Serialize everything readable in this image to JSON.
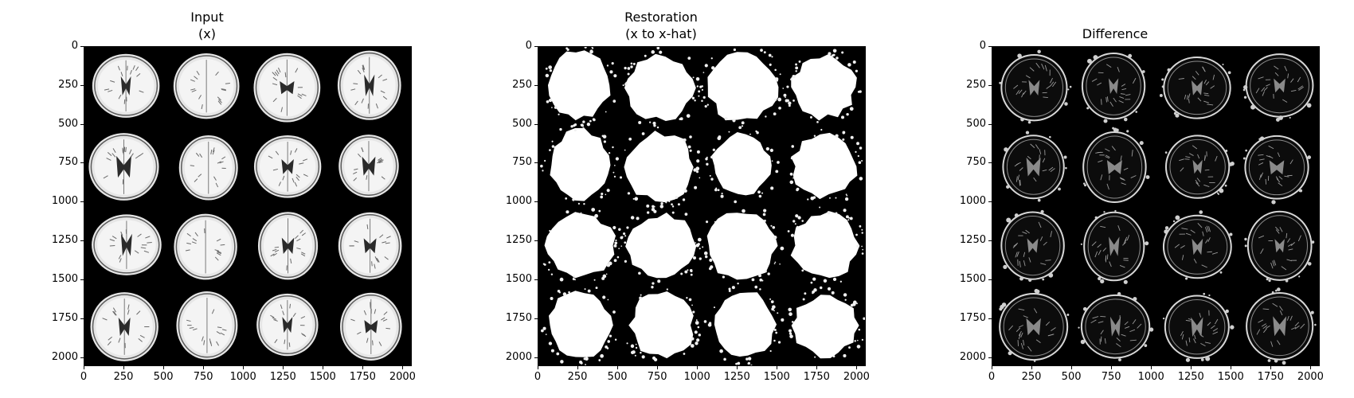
{
  "figure": {
    "panels": [
      {
        "id": "input",
        "title_line1": "Input",
        "title_line2": "(x)",
        "style": "mri"
      },
      {
        "id": "restoration",
        "title_line1": "Restoration",
        "title_line2": "(x to x-hat)",
        "style": "blob"
      },
      {
        "id": "difference",
        "title_line1": "",
        "title_line2": "Difference",
        "style": "diff"
      }
    ],
    "x_ticks": [
      "0",
      "250",
      "500",
      "750",
      "1000",
      "1250",
      "1500",
      "1750",
      "2000"
    ],
    "y_ticks": [
      "0",
      "250",
      "500",
      "750",
      "1000",
      "1250",
      "1500",
      "1750",
      "2000"
    ],
    "tick_values": [
      0,
      250,
      500,
      750,
      1000,
      1250,
      1500,
      1750,
      2000
    ],
    "axis_range": [
      0,
      2048
    ],
    "grid": "4x4 tiled axial brain MRI slices"
  }
}
